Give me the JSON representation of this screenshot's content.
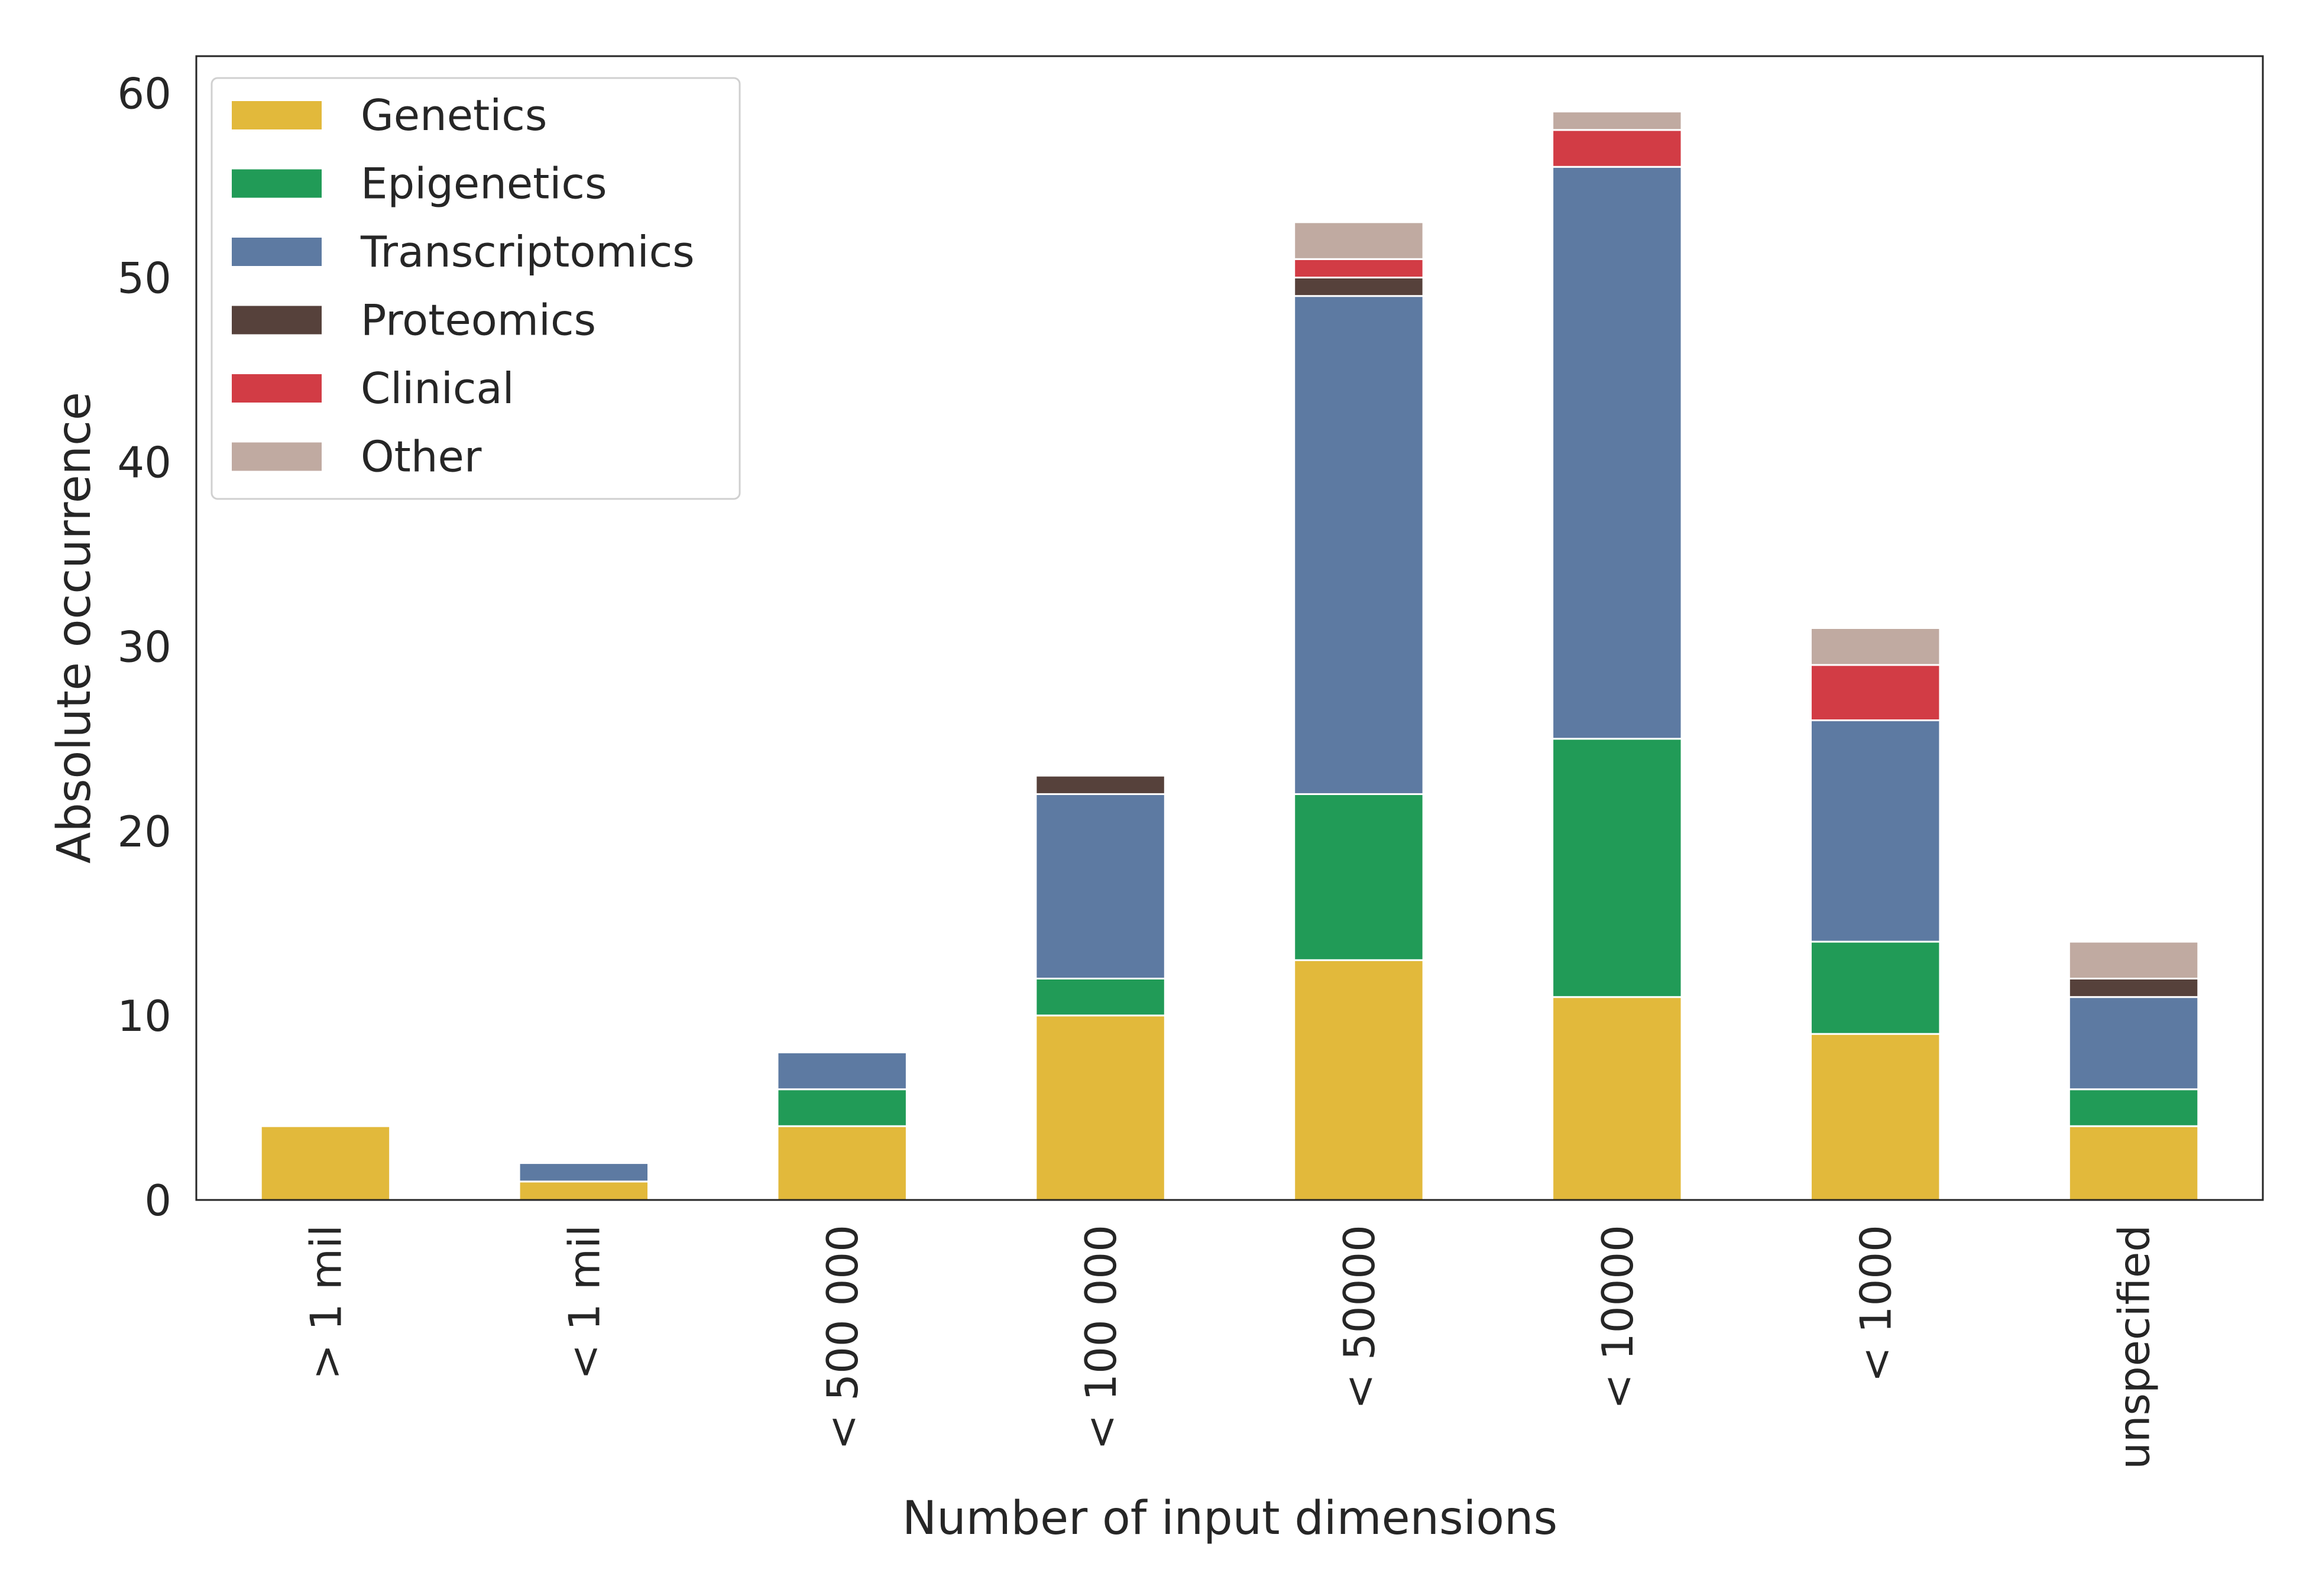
{
  "chart_data": {
    "type": "bar",
    "stacked": true,
    "xlabel": "Number of input dimensions",
    "ylabel": "Absolute occurrence",
    "ylim": [
      0,
      62
    ],
    "yticks": [
      0,
      10,
      20,
      30,
      40,
      50,
      60
    ],
    "grid": false,
    "legend_position": "top-left",
    "categories": [
      "> 1 mil",
      "< 1 mil",
      "< 500 000",
      "< 100 000",
      "< 50000",
      "< 10000",
      "< 1000",
      "unspecified"
    ],
    "series": [
      {
        "name": "Genetics",
        "color": "#e2b93b",
        "values": [
          4,
          1,
          4,
          10,
          13,
          11,
          9,
          4
        ]
      },
      {
        "name": "Epigenetics",
        "color": "#219b57",
        "values": [
          0,
          0,
          2,
          2,
          9,
          14,
          5,
          2
        ]
      },
      {
        "name": "Transcriptomics",
        "color": "#5d7aa2",
        "values": [
          0,
          1,
          2,
          10,
          27,
          31,
          12,
          5
        ]
      },
      {
        "name": "Proteomics",
        "color": "#56413b",
        "values": [
          0,
          0,
          0,
          1,
          1,
          0,
          0,
          1
        ]
      },
      {
        "name": "Clinical",
        "color": "#d23c45",
        "values": [
          0,
          0,
          0,
          0,
          1,
          2,
          3,
          0
        ]
      },
      {
        "name": "Other",
        "color": "#c0aaa1",
        "values": [
          0,
          0,
          0,
          0,
          2,
          1,
          2,
          2
        ]
      }
    ]
  }
}
